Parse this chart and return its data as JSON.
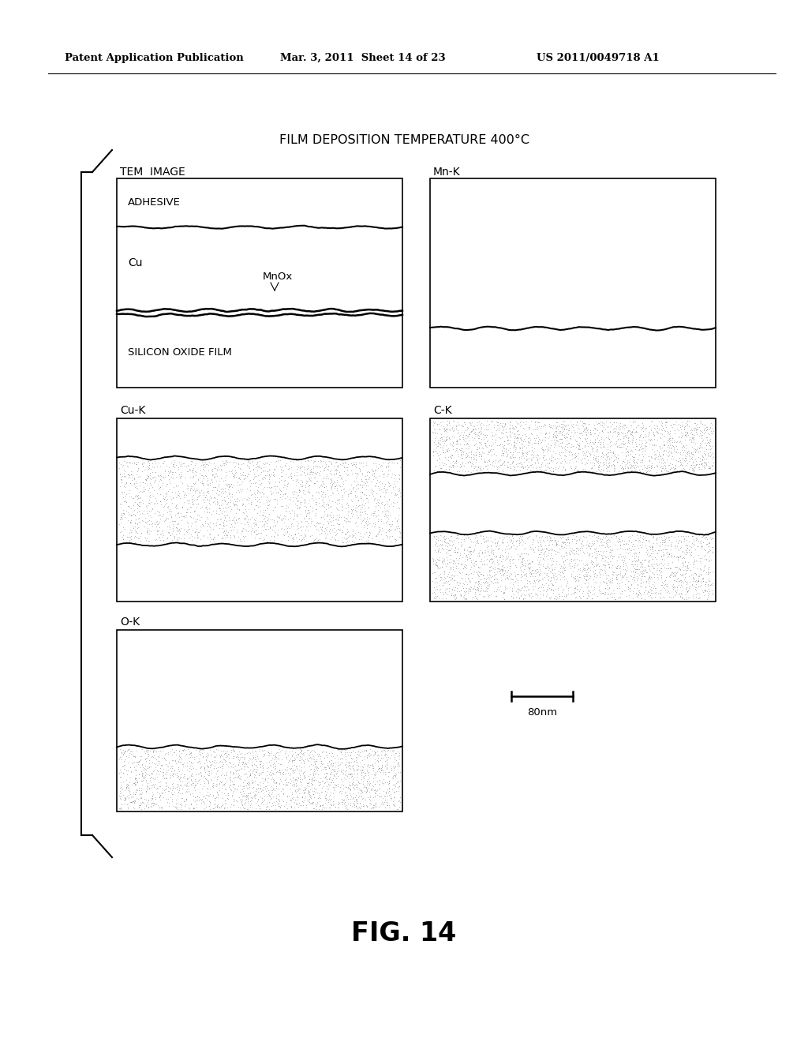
{
  "title": "FILM DEPOSITION TEMPERATURE 400°C",
  "header_left": "Patent Application Publication",
  "header_mid": "Mar. 3, 2011  Sheet 14 of 23",
  "header_right": "US 2011/0049718 A1",
  "fig_label": "FIG. 14",
  "scale_bar_label": "80nm",
  "bg_color": "#ffffff"
}
